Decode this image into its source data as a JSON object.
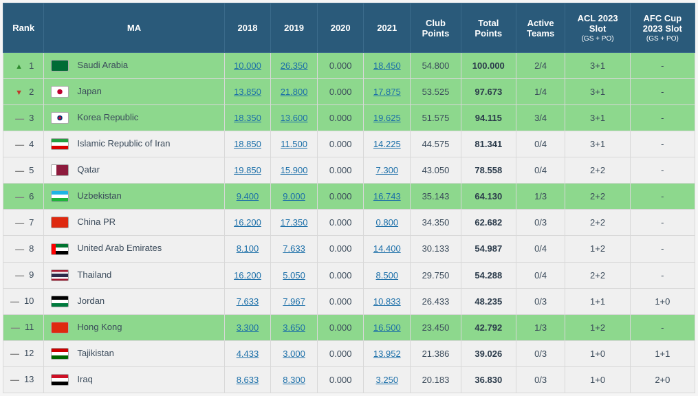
{
  "columns": [
    "Rank",
    "MA",
    "2018",
    "2019",
    "2020",
    "2021",
    "Club Points",
    "Total Points",
    "Active Teams",
    "ACL 2023 Slot",
    "AFC Cup 2023 Slot"
  ],
  "slot_subtext": "(GS + PO)",
  "rows": [
    {
      "trend": "up",
      "rank": 1,
      "flag": "sa",
      "ma": "Saudi Arabia",
      "y2018": "10.000",
      "y2019": "26.350",
      "y2020": "0.000",
      "y2021": "18.450",
      "club": "54.800",
      "total": "100.000",
      "active": "2/4",
      "acl": "3+1",
      "afc": "-",
      "hl": true
    },
    {
      "trend": "down",
      "rank": 2,
      "flag": "jp",
      "ma": "Japan",
      "y2018": "13.850",
      "y2019": "21.800",
      "y2020": "0.000",
      "y2021": "17.875",
      "club": "53.525",
      "total": "97.673",
      "active": "1/4",
      "acl": "3+1",
      "afc": "-",
      "hl": true
    },
    {
      "trend": "same",
      "rank": 3,
      "flag": "kr",
      "ma": "Korea Republic",
      "y2018": "18.350",
      "y2019": "13.600",
      "y2020": "0.000",
      "y2021": "19.625",
      "club": "51.575",
      "total": "94.115",
      "active": "3/4",
      "acl": "3+1",
      "afc": "-",
      "hl": true
    },
    {
      "trend": "same",
      "rank": 4,
      "flag": "ir",
      "ma": "Islamic Republic of Iran",
      "y2018": "18.850",
      "y2019": "11.500",
      "y2020": "0.000",
      "y2021": "14.225",
      "club": "44.575",
      "total": "81.341",
      "active": "0/4",
      "acl": "3+1",
      "afc": "-",
      "hl": false
    },
    {
      "trend": "same",
      "rank": 5,
      "flag": "qa",
      "ma": "Qatar",
      "y2018": "19.850",
      "y2019": "15.900",
      "y2020": "0.000",
      "y2021": "7.300",
      "club": "43.050",
      "total": "78.558",
      "active": "0/4",
      "acl": "2+2",
      "afc": "-",
      "hl": false
    },
    {
      "trend": "same",
      "rank": 6,
      "flag": "uz",
      "ma": "Uzbekistan",
      "y2018": "9.400",
      "y2019": "9.000",
      "y2020": "0.000",
      "y2021": "16.743",
      "club": "35.143",
      "total": "64.130",
      "active": "1/3",
      "acl": "2+2",
      "afc": "-",
      "hl": true
    },
    {
      "trend": "same",
      "rank": 7,
      "flag": "cn",
      "ma": "China PR",
      "y2018": "16.200",
      "y2019": "17.350",
      "y2020": "0.000",
      "y2021": "0.800",
      "club": "34.350",
      "total": "62.682",
      "active": "0/3",
      "acl": "2+2",
      "afc": "-",
      "hl": false
    },
    {
      "trend": "same",
      "rank": 8,
      "flag": "ae",
      "ma": "United Arab Emirates",
      "y2018": "8.100",
      "y2019": "7.633",
      "y2020": "0.000",
      "y2021": "14.400",
      "club": "30.133",
      "total": "54.987",
      "active": "0/4",
      "acl": "1+2",
      "afc": "-",
      "hl": false
    },
    {
      "trend": "same",
      "rank": 9,
      "flag": "th",
      "ma": "Thailand",
      "y2018": "16.200",
      "y2019": "5.050",
      "y2020": "0.000",
      "y2021": "8.500",
      "club": "29.750",
      "total": "54.288",
      "active": "0/4",
      "acl": "2+2",
      "afc": "-",
      "hl": false
    },
    {
      "trend": "same",
      "rank": 10,
      "flag": "jo",
      "ma": "Jordan",
      "y2018": "7.633",
      "y2019": "7.967",
      "y2020": "0.000",
      "y2021": "10.833",
      "club": "26.433",
      "total": "48.235",
      "active": "0/3",
      "acl": "1+1",
      "afc": "1+0",
      "hl": false
    },
    {
      "trend": "same",
      "rank": 11,
      "flag": "hk",
      "ma": "Hong Kong",
      "y2018": "3.300",
      "y2019": "3.650",
      "y2020": "0.000",
      "y2021": "16.500",
      "club": "23.450",
      "total": "42.792",
      "active": "1/3",
      "acl": "1+2",
      "afc": "-",
      "hl": true
    },
    {
      "trend": "same",
      "rank": 12,
      "flag": "tj",
      "ma": "Tajikistan",
      "y2018": "4.433",
      "y2019": "3.000",
      "y2020": "0.000",
      "y2021": "13.952",
      "club": "21.386",
      "total": "39.026",
      "active": "0/3",
      "acl": "1+0",
      "afc": "1+1",
      "hl": false
    },
    {
      "trend": "same",
      "rank": 13,
      "flag": "iq",
      "ma": "Iraq",
      "y2018": "8.633",
      "y2019": "8.300",
      "y2020": "0.000",
      "y2021": "3.250",
      "club": "20.183",
      "total": "36.830",
      "active": "0/3",
      "acl": "1+0",
      "afc": "2+0",
      "hl": false
    }
  ]
}
